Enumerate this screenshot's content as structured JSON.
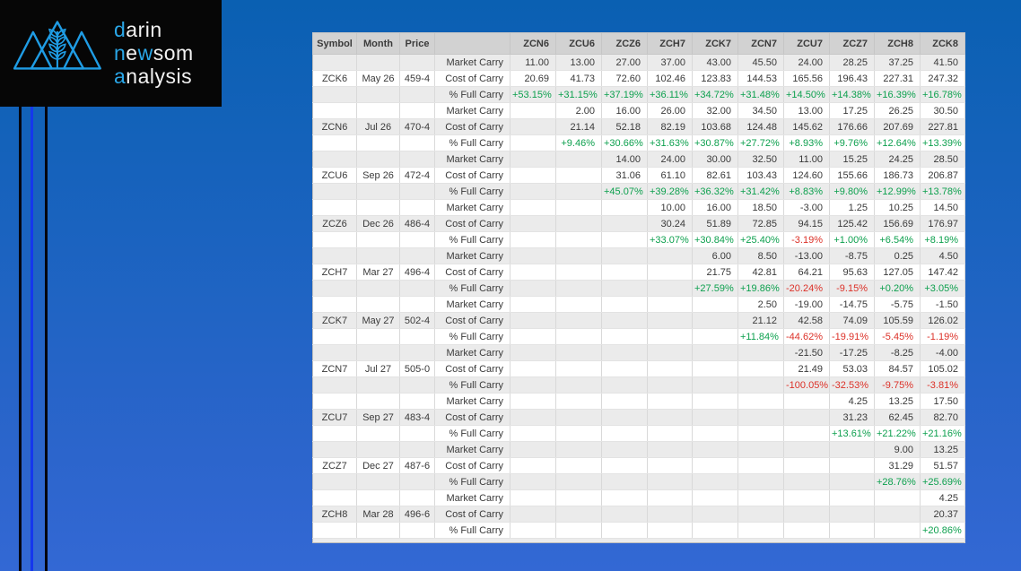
{
  "logo": {
    "icon": "mountains-wheat-logo",
    "accent_color": "#2aa7e8",
    "text_color": "#f2f2f2",
    "lines": [
      [
        {
          "text": "d",
          "accent": true
        },
        {
          "text": "arin",
          "accent": false
        }
      ],
      [
        {
          "text": "n",
          "accent": true
        },
        {
          "text": "e",
          "accent": false
        },
        {
          "text": "w",
          "accent": true
        },
        {
          "text": "som",
          "accent": false
        }
      ],
      [
        {
          "text": "a",
          "accent": true
        },
        {
          "text": "nalysis",
          "accent": false
        }
      ]
    ]
  },
  "colors": {
    "positive": "#0da04e",
    "negative": "#dc3128",
    "header_bg": "#d2d2d2",
    "row_alt_bg": "#ebebeb",
    "background_top": "#0a60b2",
    "background_bottom": "#3368d4",
    "accent_line_blue": "#1537ed"
  },
  "table": {
    "columns": [
      "Symbol",
      "Month",
      "Price",
      "",
      "ZCN6",
      "ZCU6",
      "ZCZ6",
      "ZCH7",
      "ZCK7",
      "ZCN7",
      "ZCU7",
      "ZCZ7",
      "ZCH8",
      "ZCK8"
    ],
    "row_labels": [
      "Market Carry",
      "Cost of Carry",
      "% Full Carry"
    ],
    "rows": [
      {
        "symbol": "",
        "month": "",
        "price": "",
        "label": "Market Carry",
        "values": [
          "11.00",
          "13.00",
          "27.00",
          "37.00",
          "43.00",
          "45.50",
          "24.00",
          "28.25",
          "37.25",
          "41.50"
        ]
      },
      {
        "symbol": "ZCK6",
        "month": "May 26",
        "price": "459-4",
        "label": "Cost of Carry",
        "values": [
          "20.69",
          "41.73",
          "72.60",
          "102.46",
          "123.83",
          "144.53",
          "165.56",
          "196.43",
          "227.31",
          "247.32"
        ]
      },
      {
        "symbol": "",
        "month": "",
        "price": "",
        "label": "% Full Carry",
        "values": [
          "+53.15%",
          "+31.15%",
          "+37.19%",
          "+36.11%",
          "+34.72%",
          "+31.48%",
          "+14.50%",
          "+14.38%",
          "+16.39%",
          "+16.78%"
        ]
      },
      {
        "symbol": "",
        "month": "",
        "price": "",
        "label": "Market Carry",
        "values": [
          "",
          "2.00",
          "16.00",
          "26.00",
          "32.00",
          "34.50",
          "13.00",
          "17.25",
          "26.25",
          "30.50"
        ]
      },
      {
        "symbol": "ZCN6",
        "month": "Jul 26",
        "price": "470-4",
        "label": "Cost of Carry",
        "values": [
          "",
          "21.14",
          "52.18",
          "82.19",
          "103.68",
          "124.48",
          "145.62",
          "176.66",
          "207.69",
          "227.81"
        ]
      },
      {
        "symbol": "",
        "month": "",
        "price": "",
        "label": "% Full Carry",
        "values": [
          "",
          "+9.46%",
          "+30.66%",
          "+31.63%",
          "+30.87%",
          "+27.72%",
          "+8.93%",
          "+9.76%",
          "+12.64%",
          "+13.39%"
        ]
      },
      {
        "symbol": "",
        "month": "",
        "price": "",
        "label": "Market Carry",
        "values": [
          "",
          "",
          "14.00",
          "24.00",
          "30.00",
          "32.50",
          "11.00",
          "15.25",
          "24.25",
          "28.50"
        ]
      },
      {
        "symbol": "ZCU6",
        "month": "Sep 26",
        "price": "472-4",
        "label": "Cost of Carry",
        "values": [
          "",
          "",
          "31.06",
          "61.10",
          "82.61",
          "103.43",
          "124.60",
          "155.66",
          "186.73",
          "206.87"
        ]
      },
      {
        "symbol": "",
        "month": "",
        "price": "",
        "label": "% Full Carry",
        "values": [
          "",
          "",
          "+45.07%",
          "+39.28%",
          "+36.32%",
          "+31.42%",
          "+8.83%",
          "+9.80%",
          "+12.99%",
          "+13.78%"
        ]
      },
      {
        "symbol": "",
        "month": "",
        "price": "",
        "label": "Market Carry",
        "values": [
          "",
          "",
          "",
          "10.00",
          "16.00",
          "18.50",
          "-3.00",
          "1.25",
          "10.25",
          "14.50"
        ]
      },
      {
        "symbol": "ZCZ6",
        "month": "Dec 26",
        "price": "486-4",
        "label": "Cost of Carry",
        "values": [
          "",
          "",
          "",
          "30.24",
          "51.89",
          "72.85",
          "94.15",
          "125.42",
          "156.69",
          "176.97"
        ]
      },
      {
        "symbol": "",
        "month": "",
        "price": "",
        "label": "% Full Carry",
        "values": [
          "",
          "",
          "",
          "+33.07%",
          "+30.84%",
          "+25.40%",
          "-3.19%",
          "+1.00%",
          "+6.54%",
          "+8.19%"
        ]
      },
      {
        "symbol": "",
        "month": "",
        "price": "",
        "label": "Market Carry",
        "values": [
          "",
          "",
          "",
          "",
          "6.00",
          "8.50",
          "-13.00",
          "-8.75",
          "0.25",
          "4.50"
        ]
      },
      {
        "symbol": "ZCH7",
        "month": "Mar 27",
        "price": "496-4",
        "label": "Cost of Carry",
        "values": [
          "",
          "",
          "",
          "",
          "21.75",
          "42.81",
          "64.21",
          "95.63",
          "127.05",
          "147.42"
        ]
      },
      {
        "symbol": "",
        "month": "",
        "price": "",
        "label": "% Full Carry",
        "values": [
          "",
          "",
          "",
          "",
          "+27.59%",
          "+19.86%",
          "-20.24%",
          "-9.15%",
          "+0.20%",
          "+3.05%"
        ]
      },
      {
        "symbol": "",
        "month": "",
        "price": "",
        "label": "Market Carry",
        "values": [
          "",
          "",
          "",
          "",
          "",
          "2.50",
          "-19.00",
          "-14.75",
          "-5.75",
          "-1.50"
        ]
      },
      {
        "symbol": "ZCK7",
        "month": "May 27",
        "price": "502-4",
        "label": "Cost of Carry",
        "values": [
          "",
          "",
          "",
          "",
          "",
          "21.12",
          "42.58",
          "74.09",
          "105.59",
          "126.02"
        ]
      },
      {
        "symbol": "",
        "month": "",
        "price": "",
        "label": "% Full Carry",
        "values": [
          "",
          "",
          "",
          "",
          "",
          "+11.84%",
          "-44.62%",
          "-19.91%",
          "-5.45%",
          "-1.19%"
        ]
      },
      {
        "symbol": "",
        "month": "",
        "price": "",
        "label": "Market Carry",
        "values": [
          "",
          "",
          "",
          "",
          "",
          "",
          "-21.50",
          "-17.25",
          "-8.25",
          "-4.00"
        ]
      },
      {
        "symbol": "ZCN7",
        "month": "Jul 27",
        "price": "505-0",
        "label": "Cost of Carry",
        "values": [
          "",
          "",
          "",
          "",
          "",
          "",
          "21.49",
          "53.03",
          "84.57",
          "105.02"
        ]
      },
      {
        "symbol": "",
        "month": "",
        "price": "",
        "label": "% Full Carry",
        "values": [
          "",
          "",
          "",
          "",
          "",
          "",
          "-100.05%",
          "-32.53%",
          "-9.75%",
          "-3.81%"
        ]
      },
      {
        "symbol": "",
        "month": "",
        "price": "",
        "label": "Market Carry",
        "values": [
          "",
          "",
          "",
          "",
          "",
          "",
          "",
          "4.25",
          "13.25",
          "17.50"
        ]
      },
      {
        "symbol": "ZCU7",
        "month": "Sep 27",
        "price": "483-4",
        "label": "Cost of Carry",
        "values": [
          "",
          "",
          "",
          "",
          "",
          "",
          "",
          "31.23",
          "62.45",
          "82.70"
        ]
      },
      {
        "symbol": "",
        "month": "",
        "price": "",
        "label": "% Full Carry",
        "values": [
          "",
          "",
          "",
          "",
          "",
          "",
          "",
          "+13.61%",
          "+21.22%",
          "+21.16%"
        ]
      },
      {
        "symbol": "",
        "month": "",
        "price": "",
        "label": "Market Carry",
        "values": [
          "",
          "",
          "",
          "",
          "",
          "",
          "",
          "",
          "9.00",
          "13.25"
        ]
      },
      {
        "symbol": "ZCZ7",
        "month": "Dec 27",
        "price": "487-6",
        "label": "Cost of Carry",
        "values": [
          "",
          "",
          "",
          "",
          "",
          "",
          "",
          "",
          "31.29",
          "51.57"
        ]
      },
      {
        "symbol": "",
        "month": "",
        "price": "",
        "label": "% Full Carry",
        "values": [
          "",
          "",
          "",
          "",
          "",
          "",
          "",
          "",
          "+28.76%",
          "+25.69%"
        ]
      },
      {
        "symbol": "",
        "month": "",
        "price": "",
        "label": "Market Carry",
        "values": [
          "",
          "",
          "",
          "",
          "",
          "",
          "",
          "",
          "",
          "4.25"
        ]
      },
      {
        "symbol": "ZCH8",
        "month": "Mar 28",
        "price": "496-6",
        "label": "Cost of Carry",
        "values": [
          "",
          "",
          "",
          "",
          "",
          "",
          "",
          "",
          "",
          "20.37"
        ]
      },
      {
        "symbol": "",
        "month": "",
        "price": "",
        "label": "% Full Carry",
        "values": [
          "",
          "",
          "",
          "",
          "",
          "",
          "",
          "",
          "",
          "+20.86%"
        ]
      }
    ]
  }
}
